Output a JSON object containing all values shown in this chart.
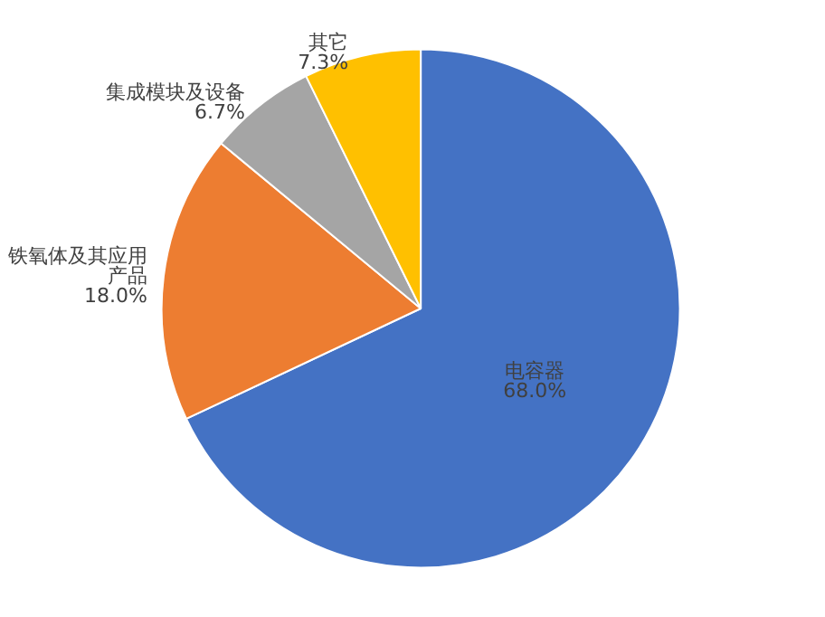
{
  "chart_data": {
    "type": "pie",
    "categories": [
      "电容器",
      "铁氧体及其应用产品",
      "集成模块及设备",
      "其它"
    ],
    "values": [
      68.0,
      18.0,
      6.7,
      7.3
    ],
    "colors": [
      "#4472c4",
      "#ed7d31",
      "#a5a5a5",
      "#ffc000"
    ],
    "value_labels": [
      "68.0%",
      "18.0%",
      "6.7%",
      "7.3%"
    ],
    "legend": false
  }
}
